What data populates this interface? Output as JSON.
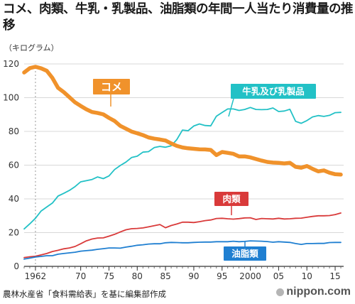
{
  "title": "コメ、肉類、牛乳・乳製品、油脂類の年間一人当たり消費量の推移",
  "unit_label": "（キログラム）",
  "source": "農林水産省「食料需給表」を基に編集部作成",
  "brand": "nippon.com",
  "colors": {
    "rice": "#f0922b",
    "milk": "#22c1c6",
    "meat": "#d93a3a",
    "oil": "#1f7fd1",
    "grid": "#d8d8d8",
    "ref_line": "#999999"
  },
  "chart_data": {
    "type": "line",
    "title": "コメ、肉類、牛乳・乳製品、油脂類の年間一人当たり消費量の推移",
    "ylabel": "（キログラム）",
    "xlabel": "",
    "ylim": [
      0,
      120
    ],
    "yticks": [
      0,
      20,
      40,
      60,
      80,
      100,
      120
    ],
    "xlim": [
      1960,
      2016.5
    ],
    "xticks": [
      {
        "value": 1962,
        "label": "1962"
      },
      {
        "value": 1970,
        "label": "70"
      },
      {
        "value": 1975,
        "label": "75"
      },
      {
        "value": 1980,
        "label": "80"
      },
      {
        "value": 1985,
        "label": "85"
      },
      {
        "value": 1990,
        "label": "90"
      },
      {
        "value": 1995,
        "label": "95"
      },
      {
        "value": 2000,
        "label": "2000"
      },
      {
        "value": 2005,
        "label": "05"
      },
      {
        "value": 2010,
        "label": "10"
      },
      {
        "value": 2015,
        "label": "15"
      }
    ],
    "reference_line_x": 1962,
    "grid": true,
    "x": [
      1960,
      1961,
      1962,
      1963,
      1964,
      1965,
      1966,
      1967,
      1968,
      1969,
      1970,
      1971,
      1972,
      1973,
      1974,
      1975,
      1976,
      1977,
      1978,
      1979,
      1980,
      1981,
      1982,
      1983,
      1984,
      1985,
      1986,
      1987,
      1988,
      1989,
      1990,
      1991,
      1992,
      1993,
      1994,
      1995,
      1996,
      1997,
      1998,
      1999,
      2000,
      2001,
      2002,
      2003,
      2004,
      2005,
      2006,
      2007,
      2008,
      2009,
      2010,
      2011,
      2012,
      2013,
      2014,
      2015,
      2016
    ],
    "series": [
      {
        "name": "コメ",
        "color_key": "rice",
        "values": [
          114.9,
          117.5,
          118.3,
          117.4,
          115.9,
          111.7,
          105.8,
          103.3,
          100.3,
          97.2,
          95.1,
          93.1,
          91.5,
          90.9,
          90.1,
          88.0,
          86.2,
          83.3,
          81.6,
          79.9,
          78.9,
          77.8,
          76.4,
          75.7,
          75.2,
          74.6,
          72.9,
          71.4,
          70.5,
          70.0,
          69.7,
          69.4,
          69.3,
          69.0,
          66.0,
          67.8,
          67.3,
          66.7,
          65.2,
          65.2,
          64.6,
          63.6,
          62.7,
          61.9,
          61.5,
          61.4,
          61.0,
          61.4,
          59.0,
          58.5,
          59.5,
          57.8,
          56.3,
          56.9,
          55.5,
          54.6,
          54.4
        ]
      },
      {
        "name": "牛乳及び乳製品",
        "color_key": "milk",
        "values": [
          22.2,
          25.2,
          28.5,
          32.8,
          35.2,
          37.5,
          41.7,
          43.3,
          45.0,
          47.3,
          50.1,
          50.8,
          51.5,
          53.0,
          52.0,
          53.6,
          57.4,
          59.8,
          61.8,
          64.5,
          65.3,
          67.7,
          68.0,
          70.4,
          71.1,
          70.6,
          71.5,
          75.1,
          80.8,
          80.4,
          83.2,
          84.4,
          83.5,
          83.3,
          89.0,
          91.2,
          93.3,
          93.3,
          92.4,
          93.0,
          94.2,
          93.0,
          92.9,
          93.0,
          93.9,
          91.8,
          92.1,
          93.1,
          86.0,
          84.8,
          86.4,
          88.6,
          89.4,
          88.9,
          89.5,
          91.1,
          91.3
        ]
      },
      {
        "name": "肉類",
        "color_key": "meat",
        "values": [
          5.2,
          5.7,
          6.0,
          6.8,
          7.6,
          8.8,
          9.5,
          10.4,
          10.9,
          11.8,
          13.4,
          15.1,
          16.2,
          16.8,
          16.9,
          17.9,
          19.0,
          20.4,
          21.7,
          22.3,
          22.5,
          22.8,
          23.4,
          24.1,
          24.8,
          22.9,
          24.2,
          25.1,
          26.2,
          26.2,
          26.0,
          26.5,
          27.1,
          27.5,
          28.4,
          28.5,
          28.2,
          28.0,
          28.3,
          28.7,
          28.8,
          27.8,
          28.4,
          28.2,
          28.1,
          28.5,
          28.1,
          28.2,
          28.5,
          28.6,
          29.1,
          29.6,
          30.0,
          30.0,
          30.1,
          30.7,
          31.6
        ]
      },
      {
        "name": "油脂類",
        "color_key": "oil",
        "values": [
          4.3,
          4.9,
          5.5,
          5.9,
          6.3,
          6.3,
          7.2,
          7.6,
          8.0,
          8.4,
          9.0,
          9.3,
          9.6,
          10.1,
          10.5,
          10.9,
          10.9,
          10.8,
          11.4,
          11.9,
          12.5,
          12.8,
          13.2,
          13.4,
          13.4,
          14.0,
          14.2,
          14.1,
          14.0,
          14.0,
          14.2,
          14.3,
          14.4,
          14.4,
          14.6,
          14.6,
          14.6,
          14.9,
          14.6,
          14.8,
          15.1,
          15.0,
          14.9,
          14.7,
          14.3,
          14.6,
          14.4,
          14.2,
          13.5,
          13.0,
          13.5,
          13.5,
          13.6,
          13.6,
          14.1,
          14.2,
          14.2
        ]
      }
    ],
    "labels": [
      {
        "text": "コメ",
        "series": "コメ",
        "style": "box"
      },
      {
        "text": "牛乳及び乳製品",
        "series": "牛乳及び乳製品",
        "style": "box"
      },
      {
        "text": "肉類",
        "series": "肉類",
        "style": "box"
      },
      {
        "text": "油脂類",
        "series": "油脂類",
        "style": "box"
      }
    ]
  }
}
